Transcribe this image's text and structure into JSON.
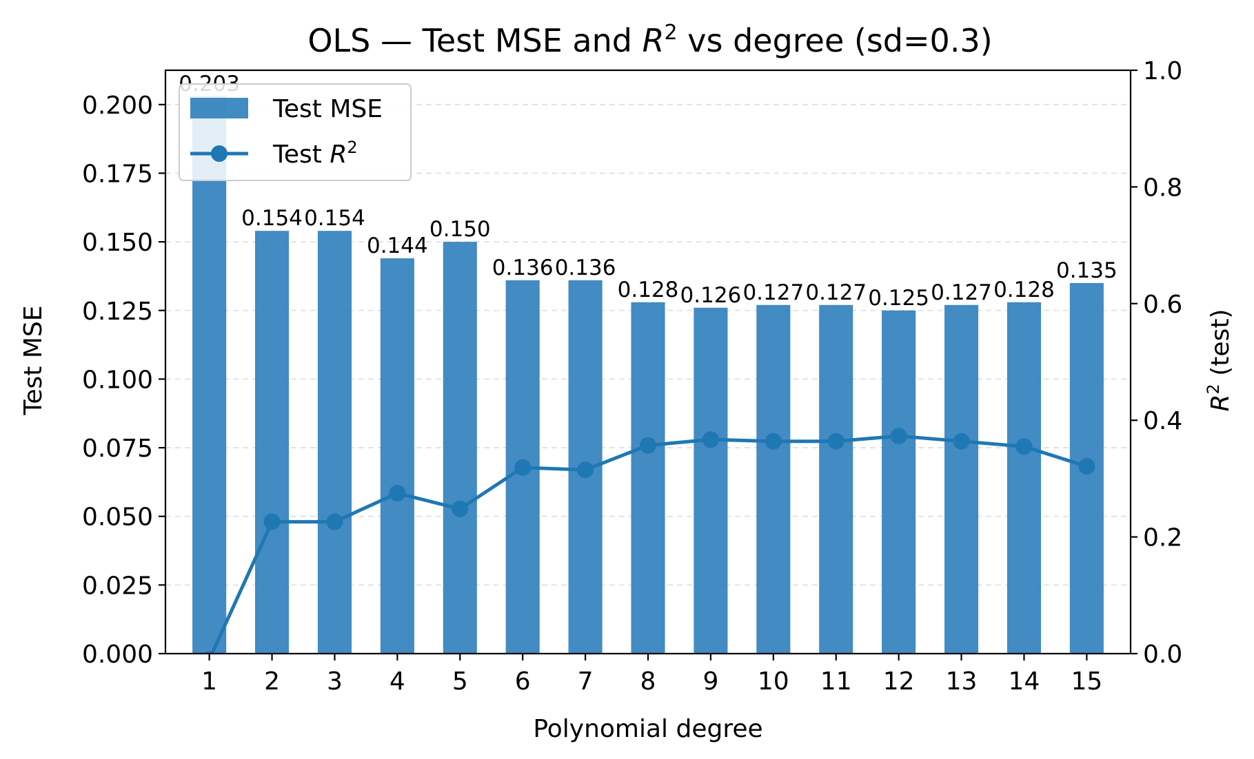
{
  "chart_data": {
    "type": "bar",
    "title": "OLS — Test MSE and R² vs degree (sd=0.3)",
    "title_parts": {
      "before": "OLS — Test MSE and ",
      "italic": "R",
      "sup": "2",
      "after": " vs degree (sd=0.3)"
    },
    "xlabel": "Polynomial degree",
    "ylabel": "Test MSE",
    "y2label": "R² (test)",
    "y2label_parts": {
      "italic": "R",
      "sup": "2",
      "after": " (test)"
    },
    "categories": [
      "1",
      "2",
      "3",
      "4",
      "5",
      "6",
      "7",
      "8",
      "9",
      "10",
      "11",
      "12",
      "13",
      "14",
      "15"
    ],
    "series": [
      {
        "name": "Test MSE",
        "kind": "bar",
        "axis": "left",
        "color": "#2e7ebc",
        "values": [
          0.203,
          0.154,
          0.154,
          0.144,
          0.15,
          0.136,
          0.136,
          0.128,
          0.126,
          0.127,
          0.127,
          0.125,
          0.127,
          0.128,
          0.135
        ],
        "data_labels": [
          "0.203",
          "0.154",
          "0.154",
          "0.144",
          "0.150",
          "0.136",
          "0.136",
          "0.128",
          "0.126",
          "0.127",
          "0.127",
          "0.125",
          "0.127",
          "0.128",
          "0.135"
        ]
      },
      {
        "name": "Test R²",
        "name_parts": {
          "before": "Test ",
          "italic": "R",
          "sup": "2"
        },
        "kind": "line",
        "marker": "circle",
        "axis": "right",
        "color": "#1f77b4",
        "values": [
          -0.01,
          0.226,
          0.226,
          0.275,
          0.248,
          0.319,
          0.315,
          0.357,
          0.367,
          0.364,
          0.364,
          0.373,
          0.364,
          0.355,
          0.321
        ]
      }
    ],
    "ylim": [
      0,
      0.2125
    ],
    "yticks": [
      0.0,
      0.025,
      0.05,
      0.075,
      0.1,
      0.125,
      0.15,
      0.175,
      0.2
    ],
    "ytick_labels": [
      "0.000",
      "0.025",
      "0.050",
      "0.075",
      "0.100",
      "0.125",
      "0.150",
      "0.175",
      "0.200"
    ],
    "y2lim": [
      0,
      1.0
    ],
    "y2ticks": [
      0.0,
      0.2,
      0.4,
      0.6,
      0.8,
      1.0
    ],
    "y2tick_labels": [
      "0.0",
      "0.2",
      "0.4",
      "0.6",
      "0.8",
      "1.0"
    ],
    "grid": "y dashed",
    "legend_position": "upper-left",
    "colors": {
      "bar": "#2e7ebc",
      "line": "#1f77b4",
      "grid": "#cccccc"
    }
  }
}
